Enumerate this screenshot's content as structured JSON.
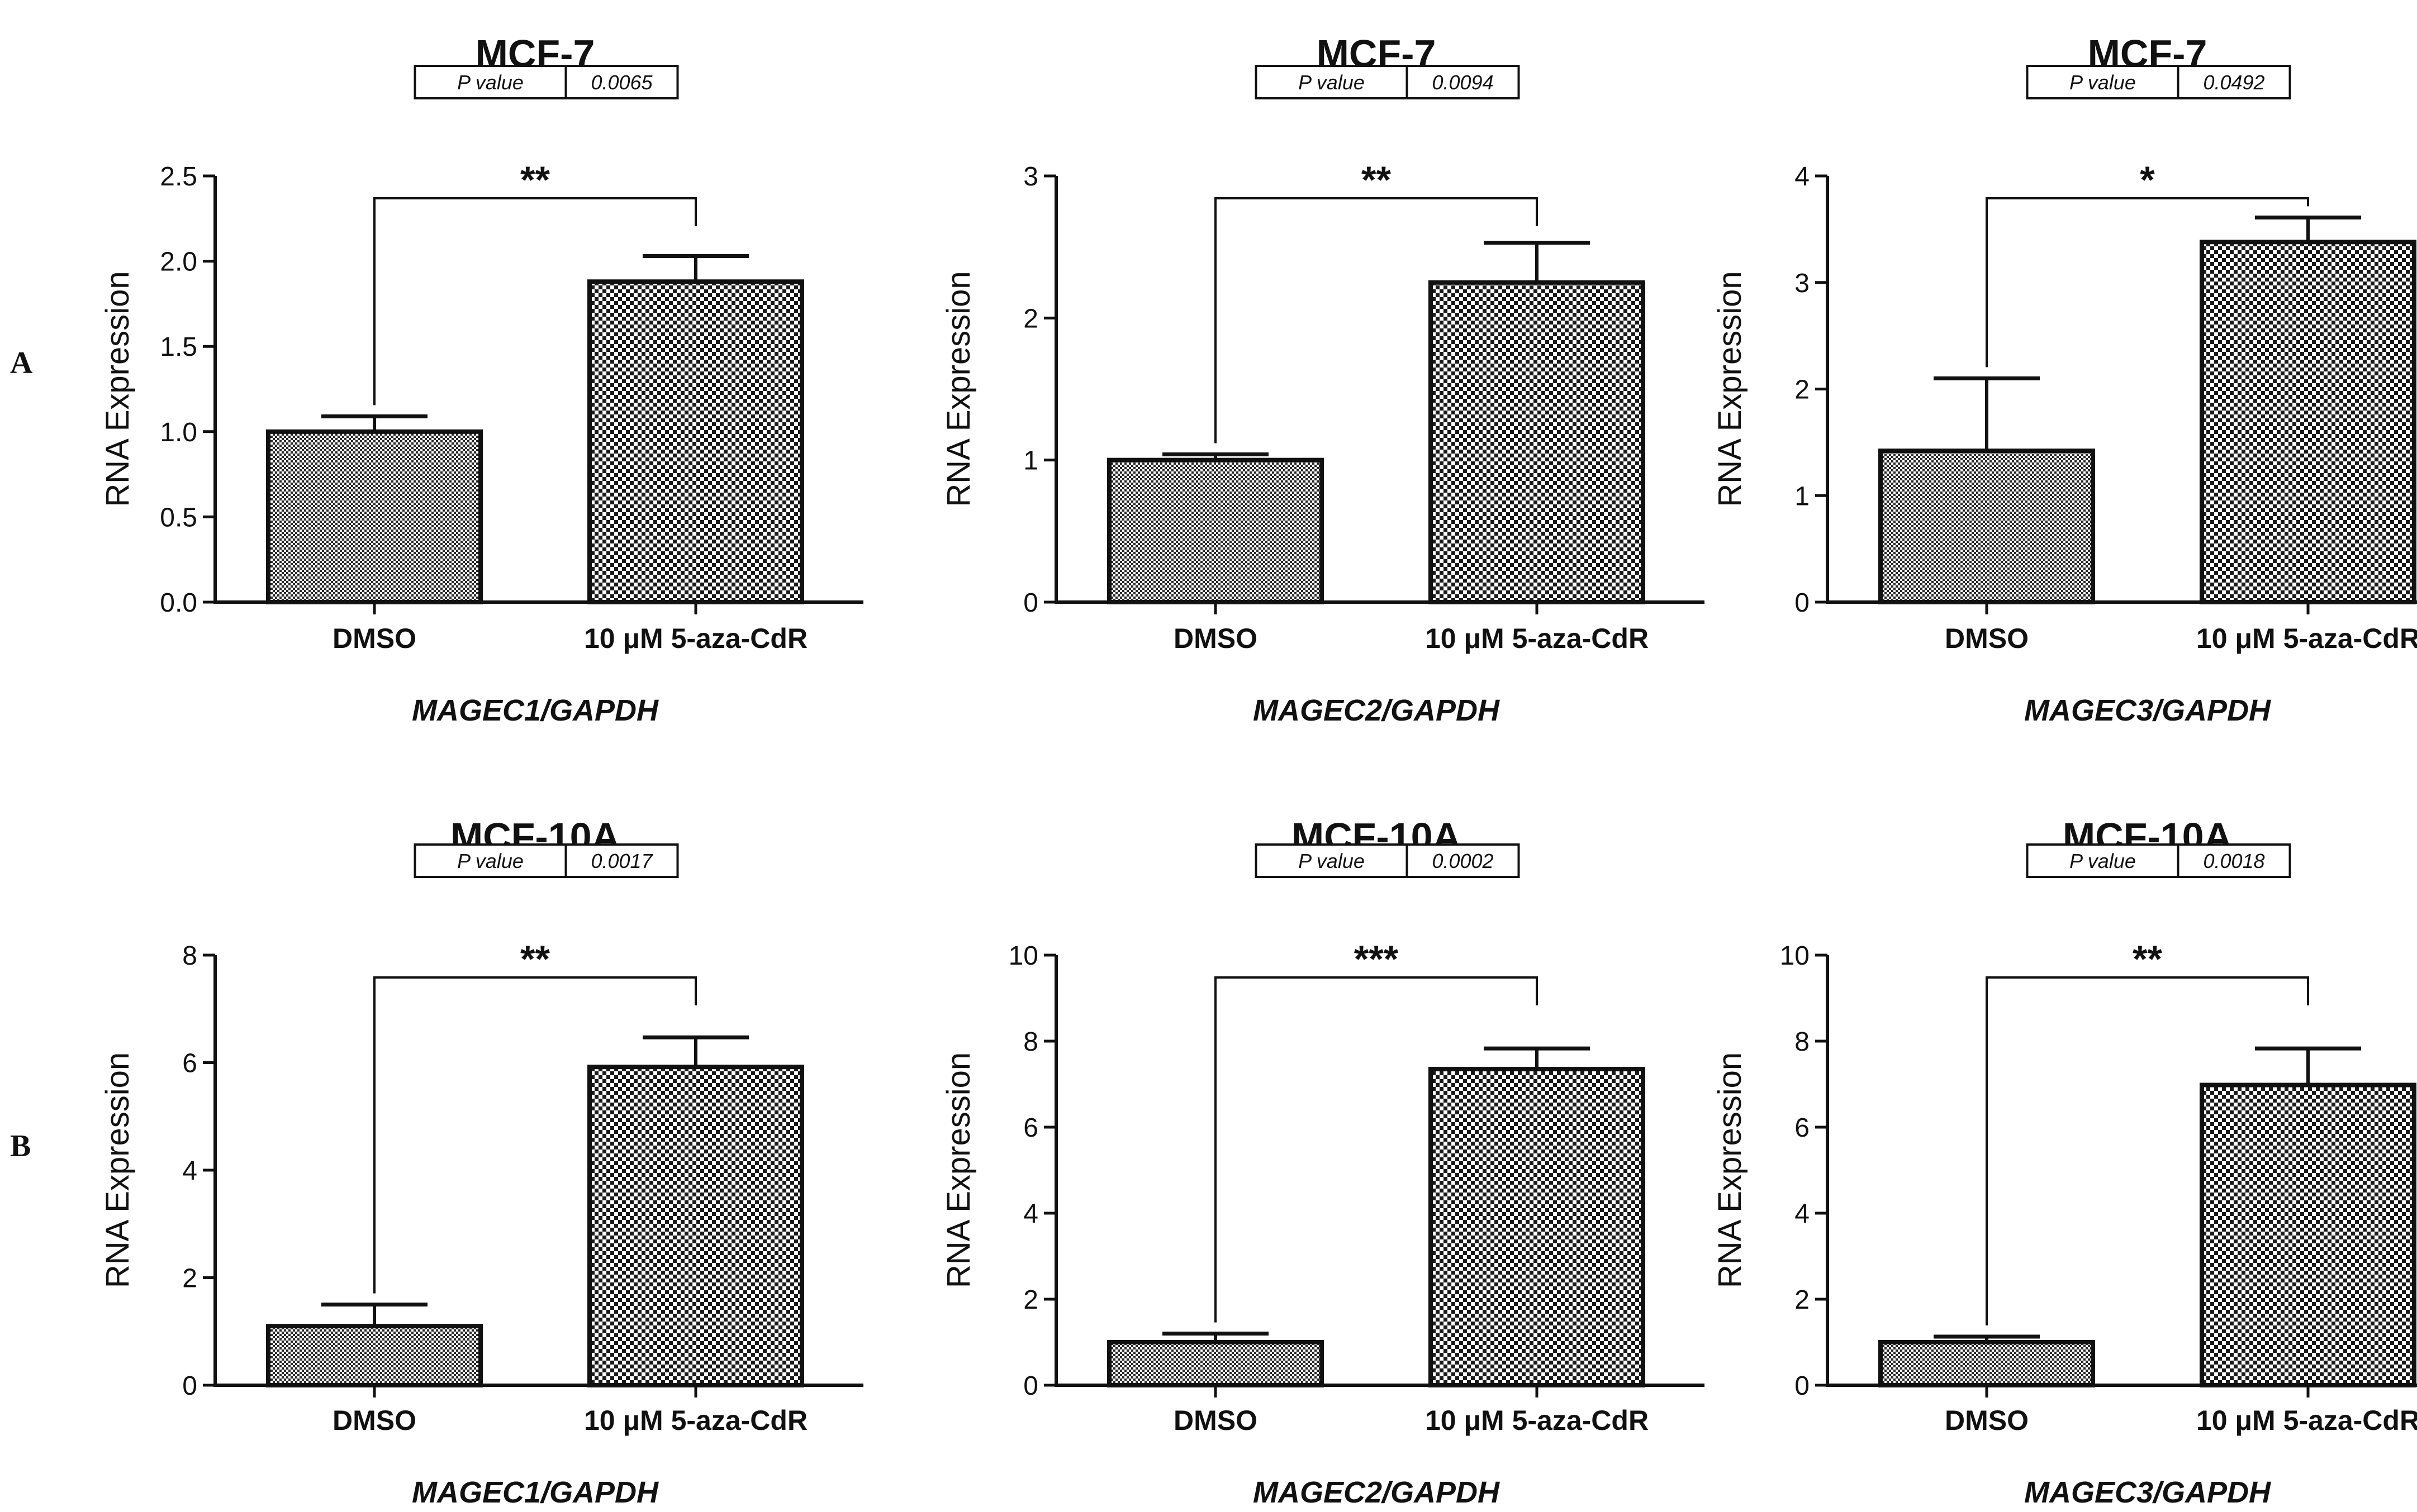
{
  "panel_letters": [
    "A",
    "B"
  ],
  "chart_data": [
    {
      "type": "bar",
      "row": 0,
      "col": 0,
      "title": "MCF-7",
      "pvalue_label": "P value",
      "pvalue": "0.0065",
      "categories": [
        "DMSO",
        "10 μM 5-aza-CdR"
      ],
      "values": [
        1.0,
        1.88
      ],
      "errors": [
        0.09,
        0.15
      ],
      "ylim": [
        0,
        2.5
      ],
      "yticks": [
        "0.0",
        "0.5",
        "1.0",
        "1.5",
        "2.0",
        "2.5"
      ],
      "ylabel": "RNA Expression",
      "xlabel": "MAGEC1/GAPDH",
      "significance": "**"
    },
    {
      "type": "bar",
      "row": 0,
      "col": 1,
      "title": "MCF-7",
      "pvalue_label": "P value",
      "pvalue": "0.0094",
      "categories": [
        "DMSO",
        "10 μM 5-aza-CdR"
      ],
      "values": [
        1.0,
        2.25
      ],
      "errors": [
        0.04,
        0.28
      ],
      "ylim": [
        0,
        3
      ],
      "yticks": [
        "0",
        "1",
        "2",
        "3"
      ],
      "ylabel": "RNA Expression",
      "xlabel": "MAGEC2/GAPDH",
      "significance": "**"
    },
    {
      "type": "bar",
      "row": 0,
      "col": 2,
      "title": "MCF-7",
      "pvalue_label": "P value",
      "pvalue": "0.0492",
      "categories": [
        "DMSO",
        "10 μM 5-aza-CdR"
      ],
      "values": [
        1.42,
        3.38
      ],
      "errors": [
        0.68,
        0.23
      ],
      "ylim": [
        0,
        4
      ],
      "yticks": [
        "0",
        "1",
        "2",
        "3",
        "4"
      ],
      "ylabel": "RNA Expression",
      "xlabel": "MAGEC3/GAPDH",
      "significance": "*"
    },
    {
      "type": "bar",
      "row": 1,
      "col": 0,
      "title": "MCF-10A",
      "pvalue_label": "P value",
      "pvalue": "0.0017",
      "categories": [
        "DMSO",
        "10 μM 5-aza-CdR"
      ],
      "values": [
        1.1,
        5.92
      ],
      "errors": [
        0.4,
        0.55
      ],
      "ylim": [
        0,
        8
      ],
      "yticks": [
        "0",
        "2",
        "4",
        "6",
        "8"
      ],
      "ylabel": "RNA Expression",
      "xlabel": "MAGEC1/GAPDH",
      "significance": "**"
    },
    {
      "type": "bar",
      "row": 1,
      "col": 1,
      "title": "MCF-10A",
      "pvalue_label": "P value",
      "pvalue": "0.0002",
      "categories": [
        "DMSO",
        "10 μM 5-aza-CdR"
      ],
      "values": [
        1.0,
        7.35
      ],
      "errors": [
        0.2,
        0.48
      ],
      "ylim": [
        0,
        10
      ],
      "yticks": [
        "0",
        "2",
        "4",
        "6",
        "8",
        "10"
      ],
      "ylabel": "RNA Expression",
      "xlabel": "MAGEC2/GAPDH",
      "significance": "***"
    },
    {
      "type": "bar",
      "row": 1,
      "col": 2,
      "title": "MCF-10A",
      "pvalue_label": "P value",
      "pvalue": "0.0018",
      "categories": [
        "DMSO",
        "10 μM 5-aza-CdR"
      ],
      "values": [
        1.0,
        6.98
      ],
      "errors": [
        0.13,
        0.85
      ],
      "ylim": [
        0,
        10
      ],
      "yticks": [
        "0",
        "2",
        "4",
        "6",
        "8",
        "10"
      ],
      "ylabel": "RNA Expression",
      "xlabel": "MAGEC3/GAPDH",
      "significance": "**"
    }
  ]
}
